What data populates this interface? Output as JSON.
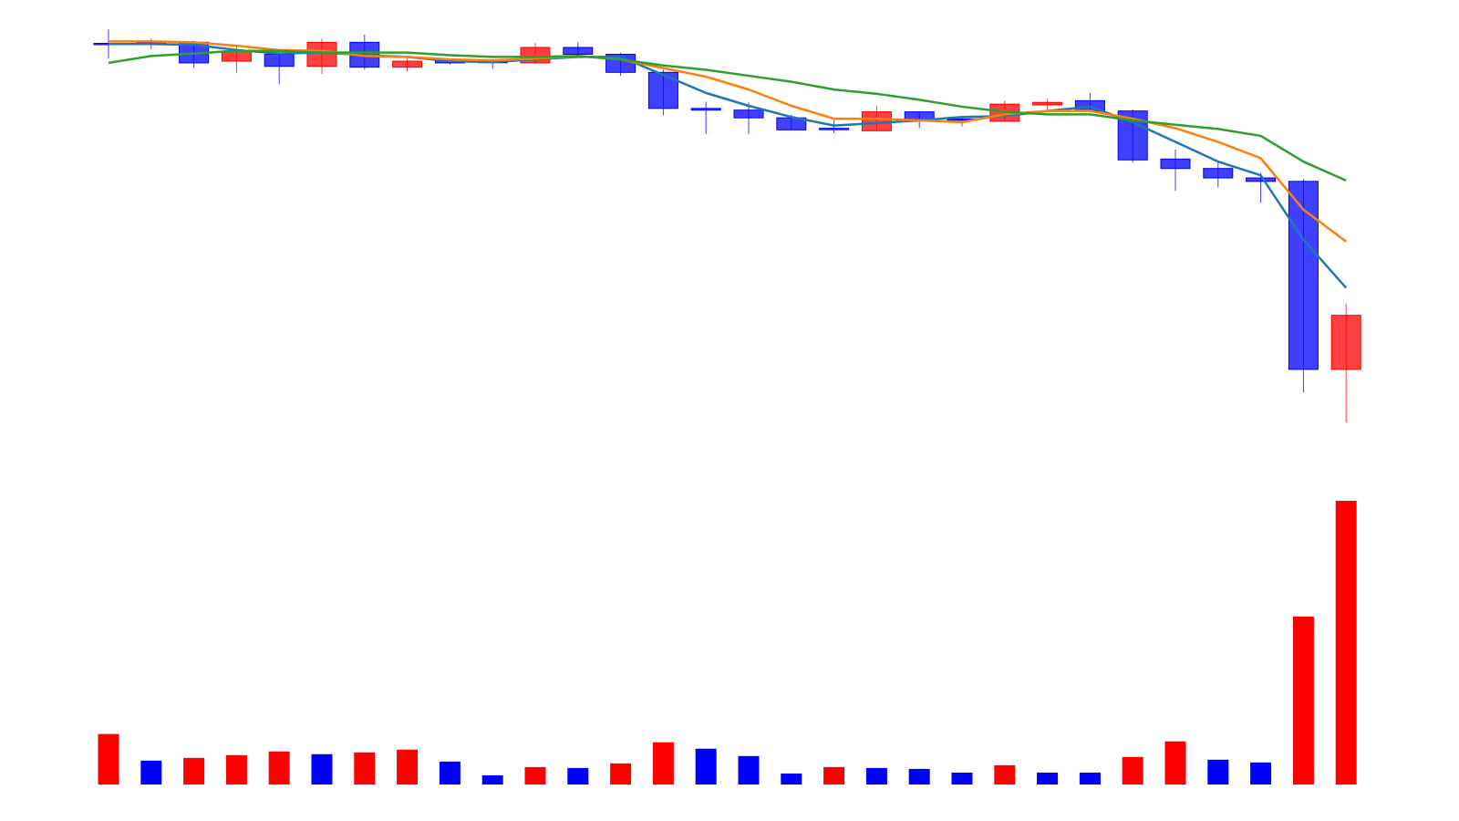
{
  "chart_data": [
    {
      "type": "candlestick",
      "title": "",
      "xlabel": "",
      "ylabel": "",
      "grid": false,
      "ylim": [
        -480,
        30
      ],
      "up_color": "#ff0000",
      "down_color": "#0000ff",
      "candles": [
        {
          "open": 0,
          "high": 17,
          "low": -17,
          "close": 0
        },
        {
          "open": 2,
          "high": 6,
          "low": -6,
          "close": 0
        },
        {
          "open": 2,
          "high": 4,
          "low": -28,
          "close": -22
        },
        {
          "open": -20,
          "high": -3,
          "low": -34,
          "close": -8
        },
        {
          "open": -12,
          "high": -9,
          "low": -47,
          "close": -26
        },
        {
          "open": -26,
          "high": 6,
          "low": -35,
          "close": 2
        },
        {
          "open": 2,
          "high": 11,
          "low": -30,
          "close": -27
        },
        {
          "open": -27,
          "high": -17,
          "low": -32,
          "close": -20
        },
        {
          "open": -19,
          "high": -18,
          "low": -24,
          "close": -22
        },
        {
          "open": -21,
          "high": -18,
          "low": -29,
          "close": -22
        },
        {
          "open": -22,
          "high": 1,
          "low": -23,
          "close": -4
        },
        {
          "open": -4,
          "high": 2,
          "low": -14,
          "close": -12
        },
        {
          "open": -12,
          "high": -10,
          "low": -37,
          "close": -33
        },
        {
          "open": -33,
          "high": -30,
          "low": -83,
          "close": -75
        },
        {
          "open": -75,
          "high": -67,
          "low": -105,
          "close": -77
        },
        {
          "open": -77,
          "high": -68,
          "low": -105,
          "close": -86
        },
        {
          "open": -86,
          "high": -82,
          "low": -100,
          "close": -100
        },
        {
          "open": -99,
          "high": -89,
          "low": -104,
          "close": -100
        },
        {
          "open": -101,
          "high": -72,
          "low": -101,
          "close": -79
        },
        {
          "open": -79,
          "high": -79,
          "low": -98,
          "close": -88
        },
        {
          "open": -88,
          "high": -84,
          "low": -96,
          "close": -89
        },
        {
          "open": -90,
          "high": -66,
          "low": -90,
          "close": -70
        },
        {
          "open": -71,
          "high": -64,
          "low": -78,
          "close": -68
        },
        {
          "open": -66,
          "high": -57,
          "low": -80,
          "close": -78
        },
        {
          "open": -78,
          "high": -76,
          "low": -138,
          "close": -135
        },
        {
          "open": -134,
          "high": -123,
          "low": -171,
          "close": -145
        },
        {
          "open": -145,
          "high": -137,
          "low": -167,
          "close": -156
        },
        {
          "open": -156,
          "high": -150,
          "low": -185,
          "close": -160
        },
        {
          "open": -160,
          "high": -157,
          "low": -406,
          "close": -379
        },
        {
          "open": -379,
          "high": -302,
          "low": -441,
          "close": -316
        }
      ],
      "ma_lines": [
        {
          "color": "#1f77b4",
          "values": [
            0,
            0,
            -1,
            -7,
            -11,
            -10,
            -13,
            -15,
            -20,
            -21,
            -18,
            -15,
            -15,
            -36,
            -57,
            -72,
            -85,
            -95,
            -92,
            -89,
            -85,
            -84,
            -78,
            -73,
            -91,
            -114,
            -137,
            -153,
            -228,
            -284
          ]
        },
        {
          "color": "#ff7f0e",
          "values": [
            3,
            3,
            2,
            -2,
            -7,
            -8,
            -14,
            -15,
            -18,
            -19,
            -17,
            -14,
            -18,
            -28,
            -38,
            -53,
            -72,
            -87,
            -87,
            -89,
            -91,
            -82,
            -78,
            -78,
            -87,
            -98,
            -114,
            -133,
            -193,
            -230
          ]
        },
        {
          "color": "#2ca02c",
          "values": [
            -22,
            -14,
            -11,
            -8,
            -8,
            -10,
            -10,
            -10,
            -13,
            -15,
            -15,
            -14,
            -18,
            -25,
            -30,
            -37,
            -44,
            -53,
            -58,
            -65,
            -73,
            -79,
            -82,
            -82,
            -89,
            -94,
            -99,
            -107,
            -137,
            -159
          ]
        }
      ],
      "volume": {
        "ylim": [
          0,
          310
        ],
        "values": [
          55,
          26,
          29,
          32,
          36,
          33,
          35,
          38,
          25,
          10,
          19,
          18,
          23,
          46,
          39,
          31,
          12,
          19,
          18,
          17,
          13,
          21,
          13,
          13,
          30,
          47,
          27,
          24,
          183,
          309
        ],
        "colors": [
          "#ff0000",
          "#0000ff",
          "#ff0000",
          "#ff0000",
          "#ff0000",
          "#0000ff",
          "#ff0000",
          "#ff0000",
          "#0000ff",
          "#0000ff",
          "#ff0000",
          "#0000ff",
          "#ff0000",
          "#ff0000",
          "#0000ff",
          "#0000ff",
          "#0000ff",
          "#ff0000",
          "#0000ff",
          "#0000ff",
          "#0000ff",
          "#ff0000",
          "#0000ff",
          "#0000ff",
          "#ff0000",
          "#ff0000",
          "#0000ff",
          "#0000ff",
          "#ff0000",
          "#ff0000"
        ]
      }
    }
  ]
}
